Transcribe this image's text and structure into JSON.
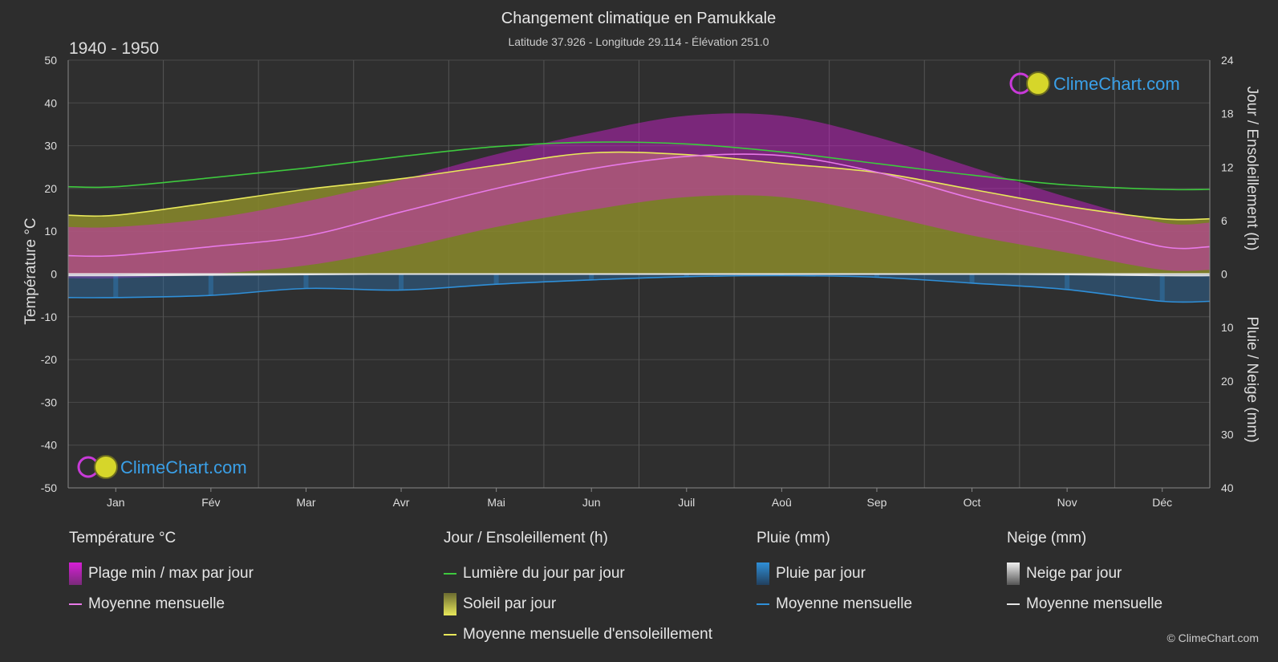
{
  "chart_data": {
    "type": "line",
    "title": "Changement climatique en Pamukkale",
    "subtitle": "Latitude 37.926 - Longitude 29.114 - Élévation 251.0",
    "period": "1940 - 1950",
    "months": [
      "Jan",
      "Fév",
      "Mar",
      "Avr",
      "Mai",
      "Jun",
      "Juil",
      "Aoû",
      "Sep",
      "Oct",
      "Nov",
      "Déc"
    ],
    "left_axis": {
      "label": "Température °C",
      "min": -50,
      "max": 50,
      "ticks": [
        50,
        40,
        30,
        20,
        10,
        0,
        -10,
        -20,
        -30,
        -40,
        -50
      ]
    },
    "right_axis_top": {
      "label": "Jour / Ensoleillement (h)",
      "min": 0,
      "max": 24,
      "ticks": [
        24,
        18,
        12,
        6,
        0
      ]
    },
    "right_axis_bottom": {
      "label": "Pluie / Neige (mm)",
      "min": 0,
      "max": 40,
      "ticks": [
        0,
        10,
        20,
        30,
        40
      ]
    },
    "series": [
      {
        "name": "Lumière du jour par jour",
        "axis": "hours",
        "color": "#3ec93e",
        "values": [
          9.8,
          10.8,
          11.9,
          13.2,
          14.3,
          14.8,
          14.6,
          13.7,
          12.4,
          11.1,
          10.0,
          9.5
        ]
      },
      {
        "name": "Moyenne mensuelle d'ensoleillement",
        "axis": "hours",
        "color": "#e8e85a",
        "values": [
          6.6,
          8.0,
          9.5,
          10.7,
          12.2,
          13.6,
          13.4,
          12.4,
          11.4,
          9.5,
          7.6,
          6.2
        ]
      },
      {
        "name": "Moyenne mensuelle",
        "group": "Température °C",
        "axis": "temperature",
        "color": "#e879e8",
        "values": [
          4.3,
          6.4,
          8.9,
          14.5,
          20.0,
          24.6,
          27.5,
          27.7,
          23.8,
          17.7,
          12.3,
          6.4
        ]
      },
      {
        "name": "Moyenne mensuelle",
        "group": "Pluie (mm)",
        "axis": "precip",
        "color": "#2f8fd8",
        "values": [
          4.4,
          4.0,
          2.7,
          3.0,
          1.9,
          1.1,
          0.5,
          0.3,
          0.6,
          1.7,
          2.9,
          5.1
        ]
      },
      {
        "name": "Moyenne mensuelle",
        "group": "Neige (mm)",
        "axis": "precip",
        "color": "#e6e6e6",
        "values": [
          0.3,
          0.2,
          0.1,
          0.0,
          0.0,
          0.0,
          0.0,
          0.0,
          0.0,
          0.0,
          0.1,
          0.3
        ]
      }
    ],
    "temp_daily_range": {
      "name": "Plage min / max par jour",
      "min": [
        -1,
        0,
        2,
        6,
        11,
        15,
        18,
        18,
        14,
        9,
        5,
        1
      ],
      "max": [
        11,
        13,
        17,
        22,
        28,
        33,
        37,
        37,
        32,
        25,
        18,
        12
      ]
    },
    "grid": true
  },
  "legend": {
    "temp": {
      "title": "Température °C",
      "items": [
        "Plage min / max par jour",
        "Moyenne mensuelle"
      ]
    },
    "sun": {
      "title": "Jour / Ensoleillement (h)",
      "items": [
        "Lumière du jour par jour",
        "Soleil par jour",
        "Moyenne mensuelle d'ensoleillement"
      ]
    },
    "rain": {
      "title": "Pluie (mm)",
      "items": [
        "Pluie par jour",
        "Moyenne mensuelle"
      ]
    },
    "snow": {
      "title": "Neige (mm)",
      "items": [
        "Neige par jour",
        "Moyenne mensuelle"
      ]
    }
  },
  "brand": "ClimeChart.com",
  "copyright": "© ClimeChart.com",
  "colors": {
    "background": "#2d2d2d",
    "grid": "#4a4a4a",
    "daylight": "#3ec93e",
    "sunshine": "#e8e85a",
    "sun_fill": "#9b9b2e",
    "temp_range": "#d61fd6",
    "temp_mean": "#e879e8",
    "rain": "#2f8fd8",
    "snow": "#e6e6e6",
    "brand": "#3aa0e8"
  }
}
